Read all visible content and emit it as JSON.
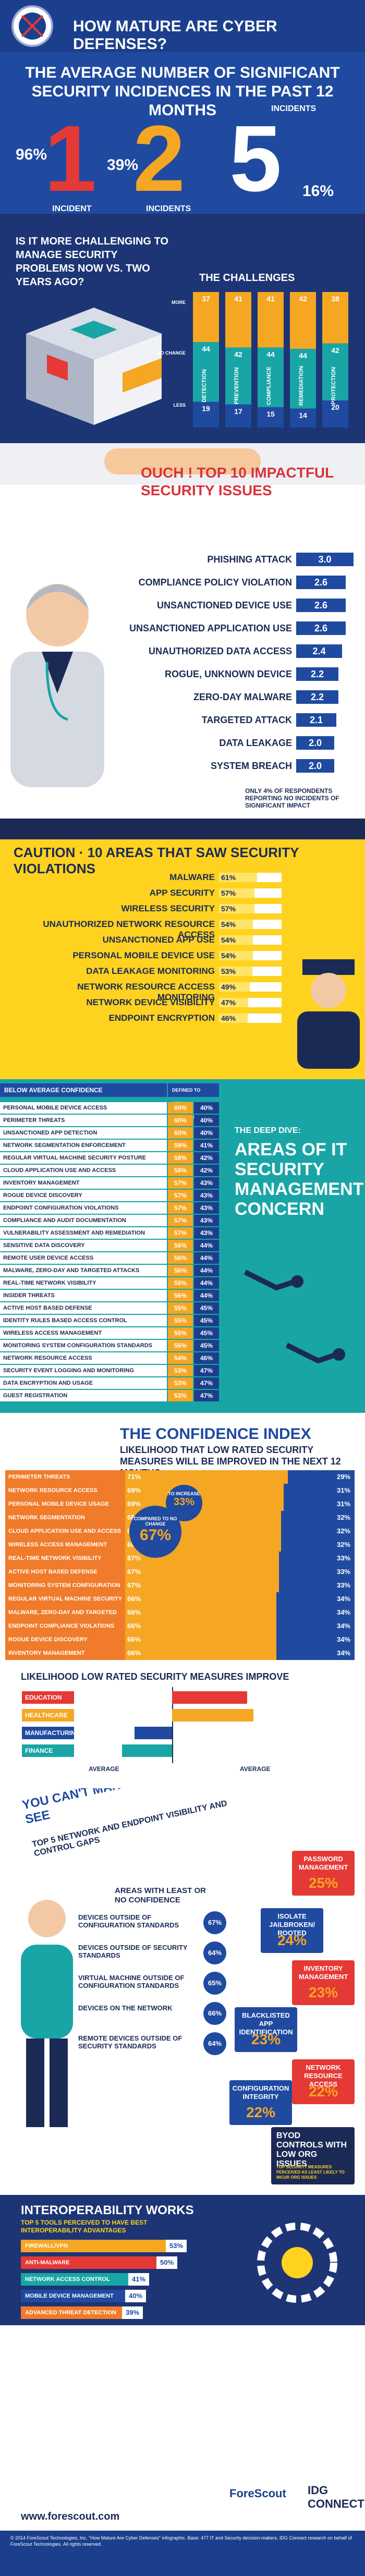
{
  "header": {
    "title": "HOW MATURE ARE CYBER DEFENSES?"
  },
  "average_incidents": {
    "headline": "THE AVERAGE NUMBER OF SIGNIFICANT SECURITY INCIDENCES IN THE PAST 12 MONTHS",
    "counts": [
      {
        "label": "INCIDENT",
        "value": "1",
        "percent": "96%"
      },
      {
        "label": "INCIDENTS",
        "value": "2",
        "percent": "39%"
      },
      {
        "label": "INCIDENTS",
        "value": "5",
        "percent": "16%"
      }
    ]
  },
  "challenges": {
    "question": "IS IT MORE CHALLENGING TO MANAGE SECURITY PROBLEMS NOW VS. TWO YEARS AGO?",
    "chart_title": "THE CHALLENGES",
    "chart_data": {
      "type": "bar",
      "categories": [
        "DETECTION",
        "PREVENTION",
        "COMPLIANCE",
        "REMEDIATION",
        "PROTECTION"
      ],
      "series": [
        {
          "name": "MORE",
          "values": [
            37,
            41,
            41,
            42,
            38
          ]
        },
        {
          "name": "NO CHANGE",
          "values": [
            44,
            42,
            44,
            44,
            42
          ]
        },
        {
          "name": "LESS",
          "values": [
            19,
            17,
            15,
            14,
            20
          ]
        }
      ],
      "ylim": [
        0,
        100
      ]
    }
  },
  "issues": {
    "heading": "OUCH ! TOP 10 IMPACTFUL SECURITY ISSUES",
    "chart_data": {
      "type": "bar",
      "categories": [
        "PHISHING ATTACK",
        "COMPLIANCE POLICY VIOLATION",
        "UNSANCTIONED DEVICE USE",
        "UNSANCTIONED APPLICATION USE",
        "UNAUTHORIZED DATA ACCESS",
        "ROGUE, UNKNOWN DEVICE",
        "ZERO-DAY MALWARE",
        "TARGETED ATTACK",
        "DATA LEAKAGE",
        "SYSTEM BREACH"
      ],
      "values": [
        3.0,
        2.6,
        2.6,
        2.6,
        2.4,
        2.2,
        2.2,
        2.1,
        2.0,
        2.0
      ],
      "value_labels": [
        "3.0",
        "2.6",
        "2.6",
        "2.6",
        "2.4",
        "2.2",
        "2.2",
        "2.1",
        "2.0",
        "2.0"
      ],
      "xlim": [
        0,
        3
      ]
    },
    "note": "ONLY 4% OF RESPONDENTS REPORTING NO INCIDENTS OF SIGNIFICANT IMPACT"
  },
  "violations": {
    "heading": "CAUTION · 10 AREAS THAT SAW SECURITY VIOLATIONS",
    "chart_data": {
      "type": "bar",
      "categories": [
        "MALWARE",
        "APP SECURITY",
        "WIRELESS SECURITY",
        "UNAUTHORIZED NETWORK RESOURCE ACCESS",
        "UNSANCTIONED APP USE",
        "PERSONAL MOBILE DEVICE USE",
        "DATA LEAKAGE MONITORING",
        "NETWORK RESOURCE ACCESS MONITORING",
        "NETWORK DEVICE VISIBILITY",
        "ENDPOINT ENCRYPTION"
      ],
      "values": [
        61,
        57,
        57,
        54,
        54,
        54,
        53,
        49,
        47,
        46
      ],
      "value_labels": [
        "61%",
        "57%",
        "57%",
        "54%",
        "54%",
        "54%",
        "53%",
        "49%",
        "47%",
        "46%"
      ],
      "xlim": [
        0,
        100
      ]
    }
  },
  "deep_dive": {
    "col_left": "BELOW AVERAGE CONFIDENCE",
    "col_right": "DEFINED TO STRONG CONFIDENCE",
    "right_title": "THE DEEP DIVE:",
    "right_big": "AREAS OF IT SECURITY MANAGEMENT CONCERN",
    "chart_data": {
      "type": "table",
      "categories": [
        "PERSONAL MOBILE DEVICE ACCESS",
        "PERIMETER THREATS",
        "UNSANCTIONED APP DETECTION",
        "NETWORK SEGMENTATION ENFORCEMENT",
        "REGULAR VIRTUAL MACHINE SECURITY POSTURE",
        "CLOUD APPLICATION USE AND ACCESS",
        "INVENTORY MANAGEMENT",
        "ROGUE DEVICE DISCOVERY",
        "ENDPOINT CONFIGURATION VIOLATIONS",
        "COMPLIANCE AND AUDIT DOCUMENTATION",
        "VULNERABILITY ASSESSMENT AND REMEDIATION",
        "SENSITIVE DATA DISCOVERY",
        "REMOTE USER DEVICE ACCESS",
        "MALWARE, ZERO-DAY AND TARGETED ATTACKS",
        "REAL-TIME NETWORK VISIBILITY",
        "INSIDER THREATS",
        "ACTIVE HOST BASED DEFENSE",
        "IDENTITY RULES BASED ACCESS CONTROL",
        "WIRELESS ACCESS MANAGEMENT",
        "MONITORING SYSTEM CONFIGURATION STANDARDS",
        "NETWORK RESOURCE ACCESS",
        "SECURITY EVENT LOGGING AND MONITORING",
        "DATA ENCRYPTION AND USAGE",
        "GUEST REGISTRATION"
      ],
      "series": [
        {
          "name": "BELOW AVERAGE CONFIDENCE",
          "values": [
            60,
            60,
            60,
            59,
            58,
            58,
            57,
            57,
            57,
            57,
            57,
            56,
            56,
            56,
            56,
            56,
            55,
            55,
            55,
            55,
            54,
            53,
            53,
            53
          ]
        },
        {
          "name": "DEFINED TO STRONG CONFIDENCE",
          "values": [
            40,
            40,
            40,
            41,
            42,
            42,
            43,
            43,
            43,
            43,
            43,
            44,
            44,
            44,
            44,
            44,
            45,
            45,
            45,
            45,
            46,
            47,
            47,
            47
          ]
        }
      ]
    }
  },
  "confidence": {
    "title": "THE CONFIDENCE INDEX",
    "subtitle": "LIKELIHOOD THAT LOW RATED SECURITY MEASURES WILL BE IMPROVED IN THE NEXT 12 MONTHS",
    "bubble_small": {
      "text": "TO INCREASE",
      "value": "33%"
    },
    "bubble_big": {
      "text": "COMPARED TO NO CHANGE",
      "value": "67%"
    },
    "chart_data": {
      "type": "bar",
      "categories": [
        "PERIMETER THREATS",
        "NETWORK RESOURCE ACCESS",
        "PERSONAL MOBILE DEVICE USAGE",
        "NETWORK SEGMENTATION ENFORCEMENT",
        "CLOUD APPLICATION USE AND ACCESS",
        "WIRELESS ACCESS MANAGEMENT",
        "REAL-TIME NETWORK VISIBILITY",
        "ACTIVE HOST BASED DEFENSE",
        "MONITORING SYSTEM CONFIGURATION STANDARDS",
        "REGULAR VIRTUAL MACHINE SECURITY POSTURE",
        "MALWARE, ZERO-DAY AND TARGETED ATTACKS",
        "ENDPOINT COMPLIANCE VIOLATIONS",
        "ROGUE DEVICE DISCOVERY",
        "INVENTORY MANAGEMENT"
      ],
      "series": [
        {
          "name": "NO CHANGE",
          "values": [
            71,
            69,
            69,
            68,
            68,
            68,
            67,
            67,
            67,
            66,
            66,
            66,
            66,
            66
          ]
        },
        {
          "name": "INCREASE",
          "values": [
            29,
            31,
            31,
            32,
            32,
            32,
            33,
            33,
            33,
            34,
            34,
            34,
            34,
            34
          ]
        }
      ]
    }
  },
  "industry": {
    "title": "LIKELIHOOD LOW RATED SECURITY MEASURES IMPROVE",
    "axis_left": "AVERAGE",
    "axis_right": "AVERAGE",
    "chart_data": {
      "type": "bar",
      "categories": [
        "EDUCATION",
        "HEALTHCARE",
        "MANUFACTURING",
        "FINANCE"
      ],
      "values": [
        1.2,
        1.3,
        -0.6,
        -0.8
      ],
      "colors": [
        "#e53935",
        "#f5a623",
        "#1f4aa0",
        "#19a5a6"
      ]
    }
  },
  "visibility": {
    "headline": "YOU CAN'T MANAGE WHAT YOU CAN'T SEE",
    "subhead": "TOP 5 NETWORK AND ENDPOINT VISIBILITY AND CONTROL GAPS",
    "left_title": "AREAS WITH LEAST OR NO CONFIDENCE",
    "left_items": [
      {
        "label": "DEVICES OUTSIDE OF CONFIGURATION STANDARDS",
        "value": "67%"
      },
      {
        "label": "DEVICES OUTSIDE OF SECURITY STANDARDS",
        "value": "64%"
      },
      {
        "label": "VIRTUAL MACHINE OUTSIDE OF CONFIGURATION STANDARDS",
        "value": "65%"
      },
      {
        "label": "DEVICES ON THE NETWORK",
        "value": "66%"
      },
      {
        "label": "REMOTE DEVICES OUTSIDE OF SECURITY STANDARDS",
        "value": "64%"
      }
    ],
    "gaps": [
      {
        "label": "PASSWORD MANAGEMENT",
        "value": "25%"
      },
      {
        "label": "ISOLATE JAILBROKEN/ ROOTED",
        "value": "24%"
      },
      {
        "label": "INVENTORY MANAGEMENT",
        "value": "23%"
      },
      {
        "label": "BLACKLISTED APP IDENTIFICATION",
        "value": "23%"
      },
      {
        "label": "NETWORK RESOURCE ACCESS",
        "value": "22%"
      },
      {
        "label": "CONFIGURATION INTEGRITY",
        "value": "22%"
      }
    ],
    "byod": "BYOD CONTROLS WITH LOW ORG ISSUES",
    "byod_note": "TOP SECURITY MEASURES PERCEIVED AS LEAST LIKELY TO INCUR ORG ISSUES"
  },
  "interoperability": {
    "title": "INTEROPERABILITY WORKS",
    "subtitle": "TOP 5 TOOLS PERCEIVED TO HAVE BEST INTEROPERABILITY ADVANTAGES",
    "chart_data": {
      "type": "bar",
      "categories": [
        "FIREWALL/VPN",
        "ANTI-MALWARE",
        "NETWORK ACCESS CONTROL",
        "MOBILE DEVICE MANAGEMENT",
        "ADVANCED THREAT DETECTION"
      ],
      "values": [
        53,
        50,
        41,
        40,
        39
      ],
      "value_labels": [
        "53%",
        "50%",
        "41%",
        "40%",
        "39%"
      ],
      "colors": [
        "#f5a623",
        "#e53935",
        "#19a5a6",
        "#1f4aa0",
        "#f07b2a"
      ],
      "xlim": [
        0,
        60
      ]
    }
  },
  "footer": {
    "url": "www.forescout.com",
    "brand_left": "ForeScout",
    "brand_right": "IDG CONNECT",
    "legal": "© 2014 ForeScout Technologies, Inc. \"How Mature Are Cyber Defenses\" infographic. Base: 477 IT and Security decision-makers, IDG Connect research on behalf of ForeScout Technologies. All rights reserved."
  }
}
